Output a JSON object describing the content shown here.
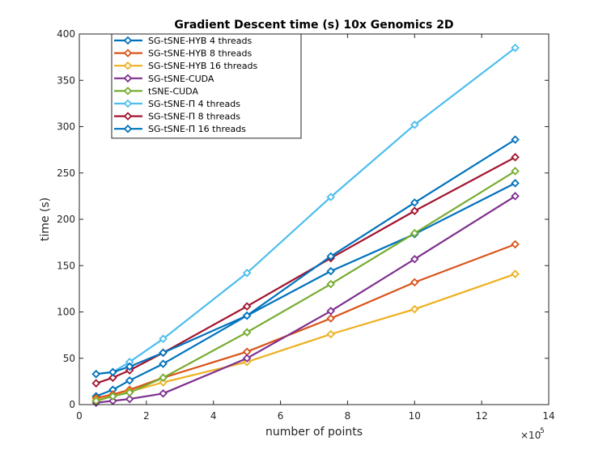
{
  "chart_data": {
    "type": "line",
    "title": "Gradient Descent time (s) 10x Genomics 2D",
    "xlabel": "number of points",
    "ylabel": "time (s)",
    "x_multiplier_label": "×10",
    "x_multiplier_exponent": "5",
    "xlim": [
      0,
      14
    ],
    "ylim": [
      0,
      400
    ],
    "xticks": [
      0,
      2,
      4,
      6,
      8,
      10,
      12,
      14
    ],
    "yticks": [
      0,
      50,
      100,
      150,
      200,
      250,
      300,
      350,
      400
    ],
    "xtick_labels": [
      "0",
      "2",
      "4",
      "6",
      "8",
      "10",
      "12",
      "14"
    ],
    "ytick_labels": [
      "0",
      "50",
      "100",
      "150",
      "200",
      "250",
      "300",
      "350",
      "400"
    ],
    "grid": false,
    "legend_position": "top-left",
    "x": [
      0.5,
      1,
      1.5,
      2.5,
      5,
      7.5,
      10,
      13
    ],
    "series": [
      {
        "name": "SG-tSNE-HYB 4 threads",
        "color": "#0072BD",
        "values": [
          9,
          16,
          26,
          44,
          96,
          144,
          184,
          239
        ]
      },
      {
        "name": "SG-tSNE-HYB 8 threads",
        "color": "#D95319",
        "values": [
          7,
          11,
          16,
          29,
          57,
          93,
          132,
          173
        ]
      },
      {
        "name": "SG-tSNE-HYB 16 threads",
        "color": "#EDB120",
        "values": [
          5,
          9,
          14,
          24,
          46,
          76,
          103,
          141
        ]
      },
      {
        "name": "SG-tSNE-CUDA",
        "color": "#7E2F8E",
        "values": [
          2,
          4,
          6,
          12,
          50,
          101,
          157,
          225
        ]
      },
      {
        "name": "tSNE-CUDA",
        "color": "#77AC30",
        "values": [
          4,
          9,
          13,
          29,
          78,
          130,
          185,
          252
        ]
      },
      {
        "name": "SG-tSNE-Π 4 threads",
        "color": "#4DBEEE",
        "values": [
          33,
          35,
          46,
          71,
          142,
          224,
          302,
          385
        ]
      },
      {
        "name": "SG-tSNE-Π 8 threads",
        "color": "#A2142F",
        "values": [
          23,
          29,
          37,
          56,
          106,
          158,
          209,
          267
        ]
      },
      {
        "name": "SG-tSNE-Π 16 threads",
        "color": "#0072BD",
        "values": [
          33,
          35,
          41,
          56,
          96,
          160,
          218,
          286
        ]
      }
    ]
  }
}
